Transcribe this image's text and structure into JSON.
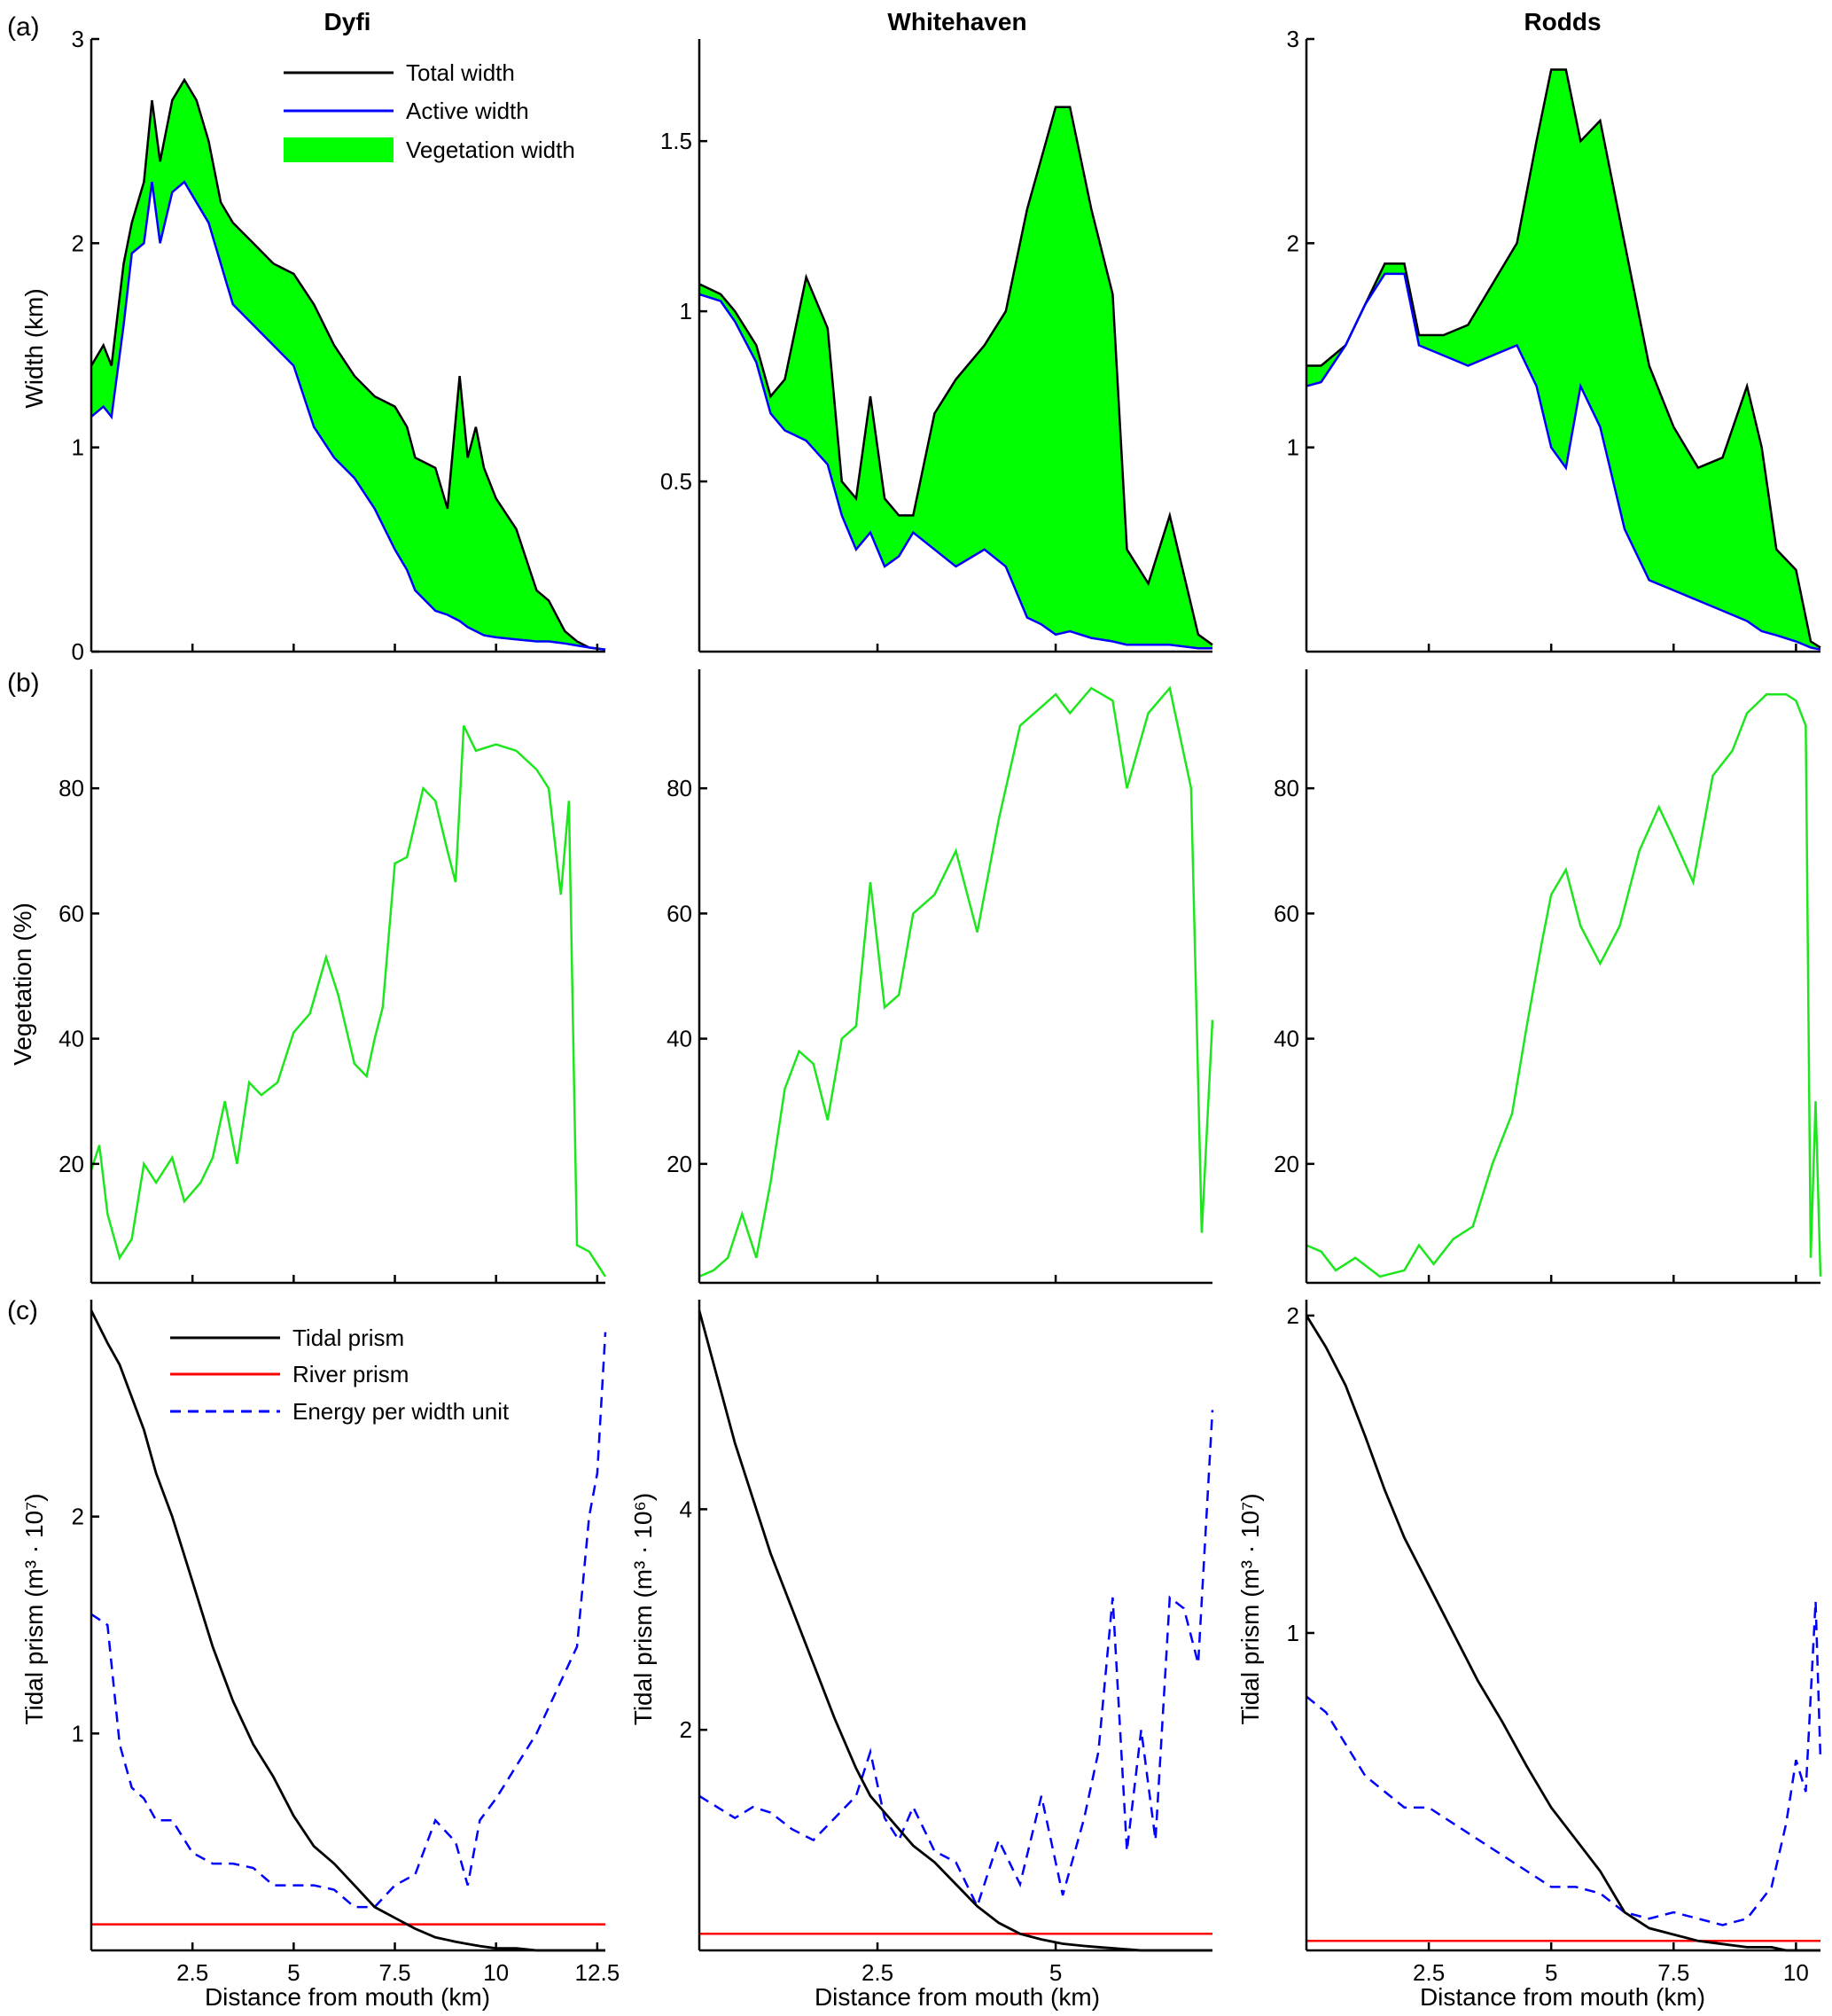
{
  "figure": {
    "columns": [
      "Dyfi",
      "Whitehaven",
      "Rodds"
    ],
    "panel_labels": [
      "(a)",
      "(b)",
      "(c)"
    ],
    "xlabel": "Distance from mouth (km)",
    "ylabels": {
      "width": "Width (km)",
      "vegetation": "Vegetation (%)",
      "tidal_dyfi": "Tidal prism (m³ · 10⁷)",
      "tidal_whitehaven": "Tidal prism (m³ · 10⁶)",
      "tidal_rodds": "Tidal prism (m³ · 10⁷)"
    },
    "legend_a": [
      "Total width",
      "Active width",
      "Vegetation width"
    ],
    "legend_c": [
      "Tidal prism",
      "River prism",
      "Energy per width unit"
    ],
    "colors": {
      "total": "#000000",
      "active": "#0000ff",
      "vegetation": "#00ff00",
      "vegline": "#1ee61e",
      "river": "#ff0000",
      "energy": "#0000ff"
    }
  },
  "chart_data": [
    {
      "type": "area",
      "panel": "(a)",
      "column": "Dyfi",
      "xlim": [
        0,
        12.7
      ],
      "ylim": [
        0,
        3
      ],
      "yticks": [
        0,
        1,
        2,
        3
      ],
      "xticks": [
        2.5,
        5,
        7.5,
        10,
        12.5
      ],
      "x": [
        0,
        0.3,
        0.5,
        0.8,
        1.0,
        1.3,
        1.5,
        1.7,
        2.0,
        2.3,
        2.6,
        2.9,
        3.2,
        3.5,
        4.0,
        4.5,
        5.0,
        5.5,
        6.0,
        6.5,
        7.0,
        7.5,
        7.8,
        8.0,
        8.5,
        8.8,
        9.1,
        9.3,
        9.5,
        9.7,
        10.0,
        10.5,
        11.0,
        11.3,
        11.7,
        12.0,
        12.3,
        12.7
      ],
      "series": [
        {
          "name": "Total width",
          "values": [
            1.4,
            1.5,
            1.4,
            1.9,
            2.1,
            2.3,
            2.7,
            2.4,
            2.7,
            2.8,
            2.7,
            2.5,
            2.2,
            2.1,
            2.0,
            1.9,
            1.85,
            1.7,
            1.5,
            1.35,
            1.25,
            1.2,
            1.1,
            0.95,
            0.9,
            0.7,
            1.35,
            0.95,
            1.1,
            0.9,
            0.75,
            0.6,
            0.3,
            0.25,
            0.1,
            0.05,
            0.02,
            0.01
          ]
        },
        {
          "name": "Active width",
          "values": [
            1.15,
            1.2,
            1.15,
            1.6,
            1.95,
            2.0,
            2.3,
            2.0,
            2.25,
            2.3,
            2.2,
            2.1,
            1.9,
            1.7,
            1.6,
            1.5,
            1.4,
            1.1,
            0.95,
            0.85,
            0.7,
            0.5,
            0.4,
            0.3,
            0.2,
            0.18,
            0.15,
            0.12,
            0.1,
            0.08,
            0.07,
            0.06,
            0.05,
            0.05,
            0.04,
            0.03,
            0.02,
            0.01
          ]
        }
      ]
    },
    {
      "type": "area",
      "panel": "(a)",
      "column": "Whitehaven",
      "xlim": [
        0,
        7.2
      ],
      "ylim": [
        0,
        1.8
      ],
      "yticks": [
        0.5,
        1,
        1.5
      ],
      "xticks": [
        2.5,
        5
      ],
      "x": [
        0,
        0.3,
        0.5,
        0.8,
        1.0,
        1.2,
        1.5,
        1.8,
        2.0,
        2.2,
        2.4,
        2.6,
        2.8,
        3.0,
        3.3,
        3.6,
        4.0,
        4.3,
        4.6,
        4.8,
        5.0,
        5.2,
        5.5,
        5.8,
        6.0,
        6.3,
        6.6,
        7.0,
        7.2
      ],
      "series": [
        {
          "name": "Total width",
          "values": [
            1.08,
            1.05,
            1.0,
            0.9,
            0.75,
            0.8,
            1.1,
            0.95,
            0.5,
            0.45,
            0.75,
            0.45,
            0.4,
            0.4,
            0.7,
            0.8,
            0.9,
            1.0,
            1.3,
            1.45,
            1.6,
            1.6,
            1.3,
            1.05,
            0.3,
            0.2,
            0.4,
            0.05,
            0.02
          ]
        },
        {
          "name": "Active width",
          "values": [
            1.05,
            1.03,
            0.97,
            0.85,
            0.7,
            0.65,
            0.62,
            0.55,
            0.4,
            0.3,
            0.35,
            0.25,
            0.28,
            0.35,
            0.3,
            0.25,
            0.3,
            0.25,
            0.1,
            0.08,
            0.05,
            0.06,
            0.04,
            0.03,
            0.02,
            0.02,
            0.02,
            0.01,
            0.01
          ]
        }
      ]
    },
    {
      "type": "area",
      "panel": "(a)",
      "column": "Rodds",
      "xlim": [
        0,
        10.5
      ],
      "ylim": [
        0,
        3
      ],
      "yticks": [
        1,
        2,
        3
      ],
      "xticks": [
        2.5,
        5,
        7.5,
        10
      ],
      "x": [
        0,
        0.3,
        0.8,
        1.2,
        1.6,
        2.0,
        2.3,
        2.8,
        3.3,
        3.8,
        4.3,
        4.7,
        5.0,
        5.3,
        5.6,
        6.0,
        6.5,
        7.0,
        7.5,
        8.0,
        8.5,
        9.0,
        9.3,
        9.6,
        10.0,
        10.3,
        10.5
      ],
      "series": [
        {
          "name": "Total width",
          "values": [
            1.4,
            1.4,
            1.5,
            1.7,
            1.9,
            1.9,
            1.55,
            1.55,
            1.6,
            1.8,
            2.0,
            2.5,
            2.85,
            2.85,
            2.5,
            2.6,
            2.0,
            1.4,
            1.1,
            0.9,
            0.95,
            1.3,
            1.0,
            0.5,
            0.4,
            0.05,
            0.02
          ]
        },
        {
          "name": "Active width",
          "values": [
            1.3,
            1.32,
            1.5,
            1.7,
            1.85,
            1.85,
            1.5,
            1.45,
            1.4,
            1.45,
            1.5,
            1.3,
            1.0,
            0.9,
            1.3,
            1.1,
            0.6,
            0.35,
            0.3,
            0.25,
            0.2,
            0.15,
            0.1,
            0.08,
            0.05,
            0.02,
            0.01
          ]
        }
      ]
    },
    {
      "type": "line",
      "panel": "(b)",
      "column": "Dyfi",
      "xlim": [
        0,
        12.7
      ],
      "ylim": [
        1,
        99
      ],
      "yticks": [
        20,
        40,
        60,
        80
      ],
      "xticks": [
        2.5,
        5,
        7.5,
        10,
        12.5
      ],
      "x": [
        0,
        0.2,
        0.4,
        0.7,
        1.0,
        1.3,
        1.6,
        2.0,
        2.3,
        2.7,
        3.0,
        3.3,
        3.6,
        3.9,
        4.2,
        4.6,
        5.0,
        5.4,
        5.8,
        6.1,
        6.5,
        6.8,
        7.0,
        7.2,
        7.5,
        7.8,
        8.2,
        8.5,
        8.8,
        9.0,
        9.2,
        9.5,
        10.0,
        10.5,
        11.0,
        11.3,
        11.6,
        11.8,
        12.0,
        12.3,
        12.7
      ],
      "series": [
        {
          "name": "",
          "values": [
            19,
            23,
            12,
            5,
            8,
            20,
            17,
            21,
            14,
            17,
            21,
            30,
            20,
            33,
            31,
            33,
            41,
            44,
            53,
            47,
            36,
            34,
            40,
            45,
            68,
            69,
            80,
            78,
            70,
            65,
            90,
            86,
            87,
            86,
            83,
            80,
            63,
            78,
            7,
            6,
            2
          ]
        }
      ]
    },
    {
      "type": "line",
      "panel": "(b)",
      "column": "Whitehaven",
      "xlim": [
        0,
        7.2
      ],
      "ylim": [
        1,
        99
      ],
      "yticks": [
        20,
        40,
        60,
        80
      ],
      "xticks": [
        2.5,
        5
      ],
      "x": [
        0,
        0.2,
        0.4,
        0.6,
        0.8,
        1.0,
        1.2,
        1.4,
        1.6,
        1.8,
        2.0,
        2.2,
        2.4,
        2.6,
        2.8,
        3.0,
        3.3,
        3.6,
        3.9,
        4.2,
        4.5,
        4.8,
        5.0,
        5.2,
        5.5,
        5.8,
        6.0,
        6.3,
        6.6,
        6.9,
        7.05,
        7.2
      ],
      "series": [
        {
          "name": "",
          "values": [
            2,
            3,
            5,
            12,
            5,
            17,
            32,
            38,
            36,
            27,
            40,
            42,
            65,
            45,
            47,
            60,
            63,
            70,
            57,
            75,
            90,
            93,
            95,
            92,
            96,
            94,
            80,
            92,
            96,
            80,
            9,
            43
          ]
        }
      ]
    },
    {
      "type": "line",
      "panel": "(b)",
      "column": "Rodds",
      "xlim": [
        0,
        10.5
      ],
      "ylim": [
        1,
        99
      ],
      "yticks": [
        20,
        40,
        60,
        80
      ],
      "xticks": [
        2.5,
        5,
        7.5,
        10
      ],
      "x": [
        0,
        0.3,
        0.6,
        1.0,
        1.5,
        2.0,
        2.3,
        2.6,
        3.0,
        3.4,
        3.8,
        4.2,
        4.5,
        4.8,
        5.0,
        5.3,
        5.6,
        6.0,
        6.4,
        6.8,
        7.2,
        7.5,
        7.9,
        8.3,
        8.7,
        9.0,
        9.4,
        9.8,
        10.0,
        10.2,
        10.3,
        10.4,
        10.5
      ],
      "series": [
        {
          "name": "",
          "values": [
            7,
            6,
            3,
            5,
            2,
            3,
            7,
            4,
            8,
            10,
            20,
            28,
            42,
            55,
            63,
            67,
            58,
            52,
            58,
            70,
            77,
            72,
            65,
            82,
            86,
            92,
            95,
            95,
            94,
            90,
            5,
            30,
            2
          ]
        }
      ]
    },
    {
      "type": "line",
      "panel": "(c)",
      "column": "Dyfi",
      "xlim": [
        0,
        12.7
      ],
      "ylim": [
        0,
        3.0
      ],
      "yticks": [
        1,
        2
      ],
      "xticks": [
        2.5,
        5,
        7.5,
        10,
        12.5
      ],
      "x": [
        0,
        0.4,
        0.7,
        1.0,
        1.3,
        1.6,
        2.0,
        2.5,
        3.0,
        3.5,
        4.0,
        4.5,
        5.0,
        5.5,
        6.0,
        6.5,
        7.0,
        7.5,
        8.0,
        8.5,
        9.0,
        9.3,
        9.6,
        10.0,
        10.5,
        11.0,
        11.5,
        12.0,
        12.3,
        12.5,
        12.7
      ],
      "series": [
        {
          "name": "Tidal prism",
          "values": [
            2.95,
            2.8,
            2.7,
            2.55,
            2.4,
            2.2,
            2.0,
            1.7,
            1.4,
            1.15,
            0.95,
            0.8,
            0.62,
            0.48,
            0.4,
            0.3,
            0.2,
            0.15,
            0.1,
            0.06,
            0.04,
            0.03,
            0.02,
            0.01,
            0.01,
            0.0,
            0.0,
            0.0,
            0.0,
            0.0,
            0.0
          ]
        },
        {
          "name": "River prism",
          "values": [
            0.12,
            0.12,
            0.12,
            0.12,
            0.12,
            0.12,
            0.12,
            0.12,
            0.12,
            0.12,
            0.12,
            0.12,
            0.12,
            0.12,
            0.12,
            0.12,
            0.12,
            0.12,
            0.12,
            0.12,
            0.12,
            0.12,
            0.12,
            0.12,
            0.12,
            0.12,
            0.12,
            0.12,
            0.12,
            0.12,
            0.12
          ]
        },
        {
          "name": "Energy per width unit",
          "values": [
            1.55,
            1.5,
            0.95,
            0.75,
            0.7,
            0.6,
            0.6,
            0.45,
            0.4,
            0.4,
            0.38,
            0.3,
            0.3,
            0.3,
            0.28,
            0.2,
            0.2,
            0.3,
            0.35,
            0.6,
            0.5,
            0.3,
            0.6,
            0.7,
            0.85,
            1.0,
            1.2,
            1.4,
            2.0,
            2.2,
            2.85
          ]
        }
      ]
    },
    {
      "type": "line",
      "panel": "(c)",
      "column": "Whitehaven",
      "xlim": [
        0,
        7.2
      ],
      "ylim": [
        0,
        5.9
      ],
      "yticks": [
        2,
        4
      ],
      "xticks": [
        2.5,
        5
      ],
      "x": [
        0,
        0.25,
        0.5,
        0.75,
        1.0,
        1.3,
        1.6,
        1.9,
        2.2,
        2.4,
        2.6,
        2.8,
        3.0,
        3.3,
        3.6,
        3.9,
        4.2,
        4.5,
        4.8,
        5.1,
        5.4,
        5.6,
        5.8,
        6.0,
        6.2,
        6.4,
        6.6,
        6.8,
        7.0,
        7.2
      ],
      "series": [
        {
          "name": "Tidal prism",
          "values": [
            5.8,
            5.2,
            4.6,
            4.1,
            3.6,
            3.1,
            2.6,
            2.1,
            1.65,
            1.4,
            1.25,
            1.1,
            0.95,
            0.8,
            0.6,
            0.4,
            0.25,
            0.15,
            0.1,
            0.06,
            0.04,
            0.03,
            0.02,
            0.01,
            0.0,
            0.0,
            0.0,
            0.0,
            0.0,
            0.0
          ]
        },
        {
          "name": "River prism",
          "values": [
            0.15,
            0.15,
            0.15,
            0.15,
            0.15,
            0.15,
            0.15,
            0.15,
            0.15,
            0.15,
            0.15,
            0.15,
            0.15,
            0.15,
            0.15,
            0.15,
            0.15,
            0.15,
            0.15,
            0.15,
            0.15,
            0.15,
            0.15,
            0.15,
            0.15,
            0.15,
            0.15,
            0.15,
            0.15,
            0.15
          ]
        },
        {
          "name": "Energy per width unit",
          "values": [
            1.4,
            1.3,
            1.2,
            1.3,
            1.25,
            1.1,
            1.0,
            1.2,
            1.4,
            1.8,
            1.2,
            1.0,
            1.3,
            0.9,
            0.8,
            0.4,
            1.0,
            0.6,
            1.4,
            0.5,
            1.2,
            1.8,
            3.2,
            0.9,
            2.0,
            1.0,
            3.2,
            3.1,
            2.6,
            4.9
          ]
        }
      ]
    },
    {
      "type": "line",
      "panel": "(c)",
      "column": "Rodds",
      "xlim": [
        0,
        10.5
      ],
      "ylim": [
        0,
        2.05
      ],
      "yticks": [
        1,
        2
      ],
      "xticks": [
        2.5,
        5,
        7.5,
        10
      ],
      "x": [
        0,
        0.4,
        0.8,
        1.2,
        1.6,
        2.0,
        2.5,
        3.0,
        3.5,
        4.0,
        4.5,
        5.0,
        5.5,
        6.0,
        6.5,
        7.0,
        7.5,
        8.0,
        8.5,
        9.0,
        9.5,
        9.8,
        10.0,
        10.2,
        10.4,
        10.5
      ],
      "series": [
        {
          "name": "Tidal prism",
          "values": [
            2.0,
            1.9,
            1.78,
            1.62,
            1.45,
            1.3,
            1.15,
            1.0,
            0.85,
            0.72,
            0.58,
            0.45,
            0.35,
            0.25,
            0.12,
            0.07,
            0.05,
            0.03,
            0.02,
            0.01,
            0.01,
            0.0,
            0.0,
            0.0,
            0.0,
            0.0
          ]
        },
        {
          "name": "River prism",
          "values": [
            0.03,
            0.03,
            0.03,
            0.03,
            0.03,
            0.03,
            0.03,
            0.03,
            0.03,
            0.03,
            0.03,
            0.03,
            0.03,
            0.03,
            0.03,
            0.03,
            0.03,
            0.03,
            0.03,
            0.03,
            0.03,
            0.03,
            0.03,
            0.03,
            0.03,
            0.03
          ]
        },
        {
          "name": "Energy per width unit",
          "values": [
            0.8,
            0.75,
            0.65,
            0.55,
            0.5,
            0.45,
            0.45,
            0.4,
            0.35,
            0.3,
            0.25,
            0.2,
            0.2,
            0.18,
            0.12,
            0.1,
            0.12,
            0.1,
            0.08,
            0.1,
            0.2,
            0.4,
            0.6,
            0.5,
            1.1,
            0.6
          ]
        }
      ]
    }
  ]
}
